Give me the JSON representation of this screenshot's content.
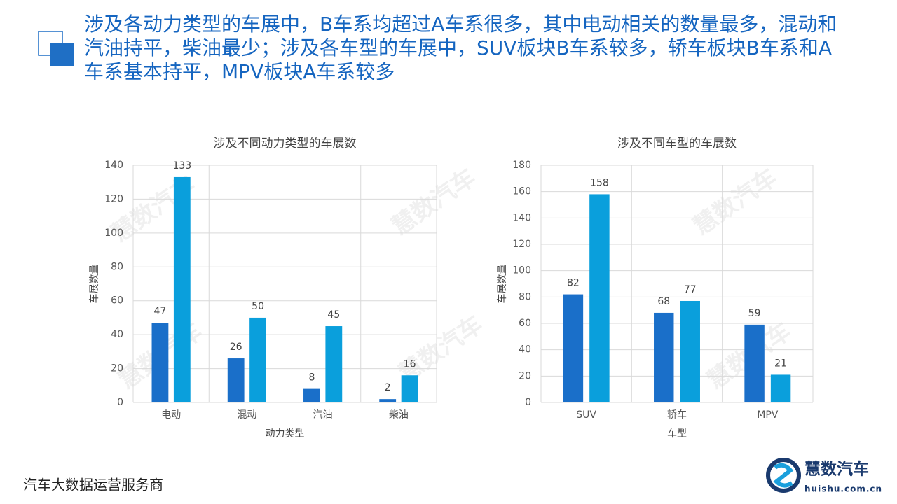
{
  "header": {
    "title": "涉及各动力类型的车展中，B车系均超过A车系很多，其中电动相关的数量最多，混动和汽油持平，柴油最少；涉及各车型的车展中，SUV板块B车系较多，轿车板块B车系和A车系基本持平，MPV板块A车系较多"
  },
  "chart_data": [
    {
      "type": "bar",
      "title": "涉及不同动力类型的车展数",
      "x_label": "动力类型",
      "y_label": "车展数量",
      "categories": [
        "电动",
        "混动",
        "汽油",
        "柴油"
      ],
      "series": [
        {
          "color": "#1a6fc9",
          "values": [
            47,
            26,
            8,
            2
          ]
        },
        {
          "color": "#0a9fdc",
          "values": [
            133,
            50,
            45,
            16
          ]
        }
      ],
      "ylim": [
        0,
        140
      ],
      "yticks": [
        0,
        20,
        40,
        60,
        80,
        100,
        120,
        140
      ],
      "grid": true
    },
    {
      "type": "bar",
      "title": "涉及不同车型的车展数",
      "x_label": "车型",
      "y_label": "车展数量",
      "categories": [
        "SUV",
        "轿车",
        "MPV"
      ],
      "series": [
        {
          "color": "#1a6fc9",
          "values": [
            82,
            68,
            59
          ]
        },
        {
          "color": "#0a9fdc",
          "values": [
            158,
            77,
            21
          ]
        }
      ],
      "ylim": [
        0,
        180
      ],
      "yticks": [
        0,
        20,
        40,
        60,
        80,
        100,
        120,
        140,
        160,
        180
      ],
      "grid": true
    }
  ],
  "watermark": "慧数汽车",
  "footer": {
    "text": "汽车大数据运营服务商",
    "logo_name": "慧数汽车",
    "logo_url": "huishu.com.cn"
  }
}
